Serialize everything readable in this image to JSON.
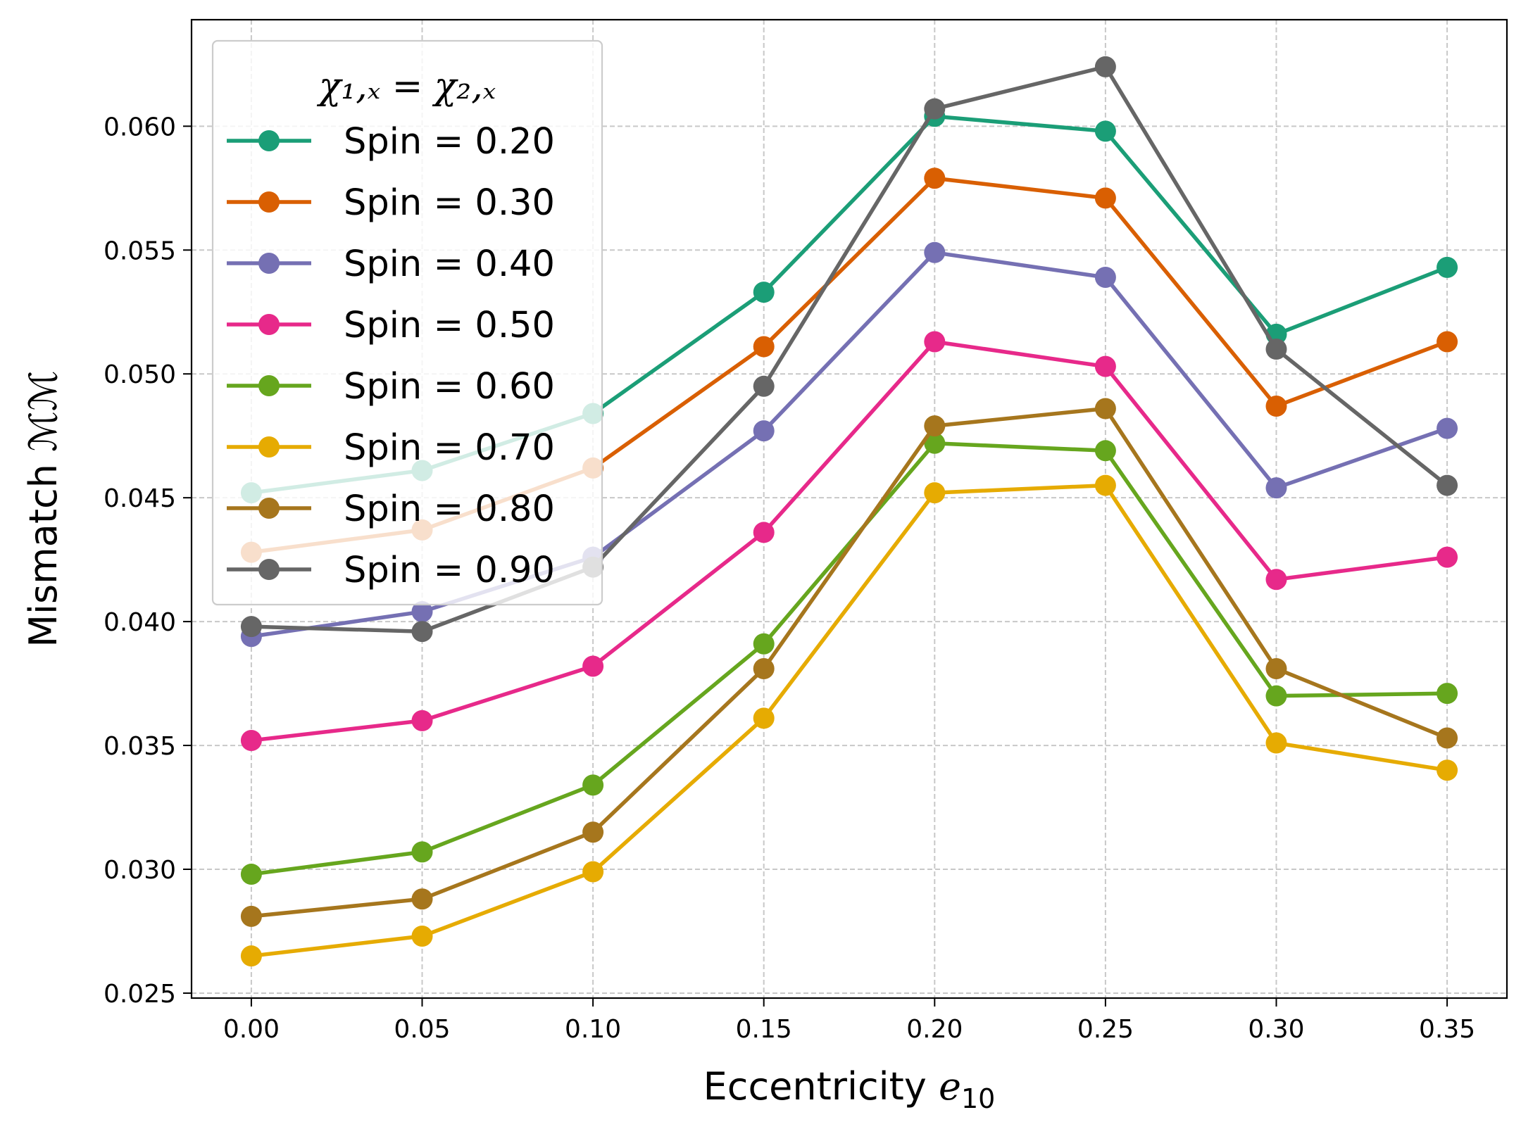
{
  "chart_data": {
    "type": "line",
    "xlabel_main": "Eccentricity ",
    "xlabel_sym": "e",
    "xlabel_sub": "10",
    "ylabel": "Mismatch ℳℳ",
    "legend_title": "χ₁,ₓ = χ₂,ₓ",
    "legend_placement": "top-left",
    "grid": true,
    "x": [
      0.0,
      0.05,
      0.1,
      0.15,
      0.2,
      0.25,
      0.3,
      0.35
    ],
    "xticks": [
      "0.00",
      "0.05",
      "0.10",
      "0.15",
      "0.20",
      "0.25",
      "0.30",
      "0.35"
    ],
    "yticks": [
      "0.025",
      "0.030",
      "0.035",
      "0.040",
      "0.045",
      "0.050",
      "0.055",
      "0.060"
    ],
    "ytick_values": [
      0.025,
      0.03,
      0.035,
      0.04,
      0.045,
      0.05,
      0.055,
      0.06
    ],
    "xlim": [
      -0.0175,
      0.3675
    ],
    "ylim": [
      0.0248,
      0.0643
    ],
    "series": [
      {
        "name": "Spin = 0.20",
        "color": "#1b9e77",
        "values": [
          0.0452,
          0.0461,
          0.0484,
          0.0533,
          0.0604,
          0.0598,
          0.0516,
          0.0543
        ]
      },
      {
        "name": "Spin = 0.30",
        "color": "#d95f02",
        "values": [
          0.0428,
          0.0437,
          0.0462,
          0.0511,
          0.0579,
          0.0571,
          0.0487,
          0.0513
        ]
      },
      {
        "name": "Spin = 0.40",
        "color": "#7570b3",
        "values": [
          0.0394,
          0.0404,
          0.0426,
          0.0477,
          0.0549,
          0.0539,
          0.0454,
          0.0478
        ]
      },
      {
        "name": "Spin = 0.50",
        "color": "#e7298a",
        "values": [
          0.0352,
          0.036,
          0.0382,
          0.0436,
          0.0513,
          0.0503,
          0.0417,
          0.0426
        ]
      },
      {
        "name": "Spin = 0.60",
        "color": "#66a61e",
        "values": [
          0.0298,
          0.0307,
          0.0334,
          0.0391,
          0.0472,
          0.0469,
          0.037,
          0.0371
        ]
      },
      {
        "name": "Spin = 0.70",
        "color": "#e6ab02",
        "values": [
          0.0265,
          0.0273,
          0.0299,
          0.0361,
          0.0452,
          0.0455,
          0.0351,
          0.034
        ]
      },
      {
        "name": "Spin = 0.80",
        "color": "#a6761d",
        "values": [
          0.0281,
          0.0288,
          0.0315,
          0.0381,
          0.0479,
          0.0486,
          0.0381,
          0.0353
        ]
      },
      {
        "name": "Spin = 0.90",
        "color": "#666666",
        "values": [
          0.0398,
          0.0396,
          0.0422,
          0.0495,
          0.0607,
          0.0624,
          0.051,
          0.0455
        ]
      }
    ]
  }
}
